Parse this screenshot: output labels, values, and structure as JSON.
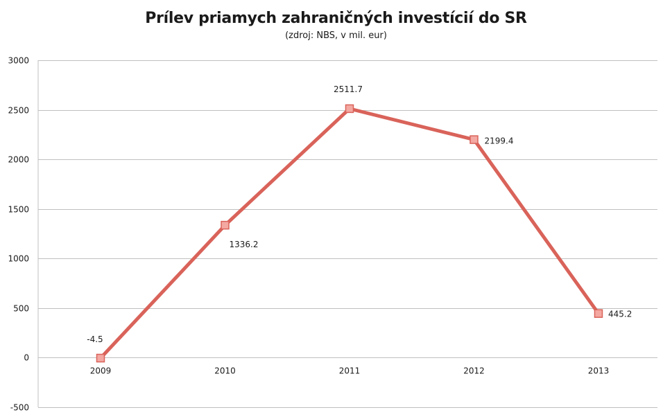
{
  "chart_data": {
    "type": "line",
    "title": "Prílev priamych zahraničných investícií do SR",
    "subtitle": "(zdroj: NBS, v mil. eur)",
    "xlabel": "",
    "ylabel": "",
    "categories": [
      "2009",
      "2010",
      "2011",
      "2012",
      "2013"
    ],
    "series": [
      {
        "values": [
          -4.5,
          1336.2,
          2511.7,
          2199.4,
          445.2
        ],
        "data_labels": [
          "-4.5",
          "1336.2",
          "2511.7",
          "2199.4",
          "445.2"
        ],
        "color": "#d9635a",
        "marker_color": "#f4a8a2",
        "marker": "square"
      }
    ],
    "y_ticks": [
      "3000",
      "2500",
      "2000",
      "1500",
      "1000",
      "500",
      "0",
      "-500"
    ],
    "ylim": [
      -500,
      3000
    ],
    "grid": true,
    "legend": "none",
    "gridline_color": "#bfbfbf"
  }
}
